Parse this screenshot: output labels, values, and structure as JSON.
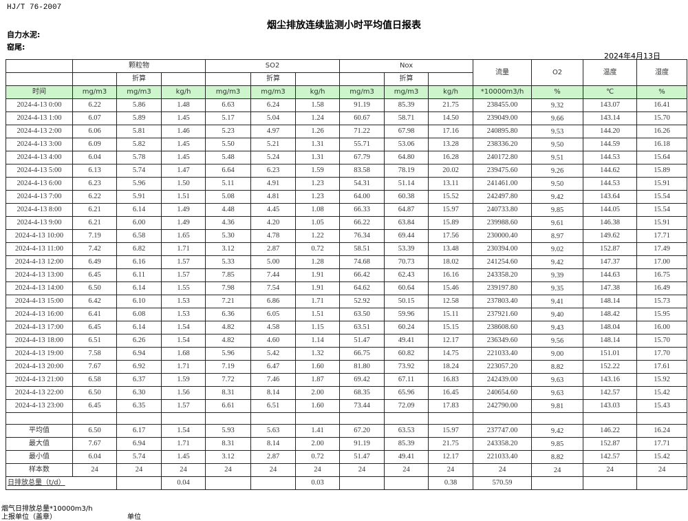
{
  "header": {
    "standard": "HJ/T  76-2007",
    "title": "烟尘排放连续监测小时平均值日报表",
    "company": "自力水泥:",
    "kiln": "窑尾:",
    "date": "2024年4月13日"
  },
  "table": {
    "groups": {
      "pm": "颗粒物",
      "so2": "SO2",
      "nox": "Nox",
      "flow": "流量",
      "o2": "O2",
      "temp": "温度",
      "humid": "湿度"
    },
    "converted_label": "折算",
    "units": [
      "时间",
      "mg/m3",
      "mg/m3",
      "kg/h",
      "mg/m3",
      "mg/m3",
      "kg/h",
      "mg/m3",
      "mg/m3",
      "kg/h",
      "*10000m3/h",
      "%",
      "℃",
      "%"
    ],
    "rows": [
      [
        "2024-4-13 0:00",
        "6.22",
        "5.86",
        "1.48",
        "6.63",
        "6.24",
        "1.58",
        "91.19",
        "85.39",
        "21.75",
        "238455.00",
        "9.32",
        "143.07",
        "16.41"
      ],
      [
        "2024-4-13 1:00",
        "6.07",
        "5.89",
        "1.45",
        "5.17",
        "5.04",
        "1.24",
        "60.67",
        "58.71",
        "14.50",
        "239049.00",
        "9.66",
        "143.14",
        "15.70"
      ],
      [
        "2024-4-13 2:00",
        "6.06",
        "5.81",
        "1.46",
        "5.23",
        "4.97",
        "1.26",
        "71.22",
        "67.98",
        "17.16",
        "240895.80",
        "9.53",
        "144.20",
        "16.26"
      ],
      [
        "2024-4-13 3:00",
        "6.09",
        "5.82",
        "1.45",
        "5.50",
        "5.21",
        "1.31",
        "55.71",
        "53.06",
        "13.28",
        "238336.20",
        "9.50",
        "144.59",
        "16.18"
      ],
      [
        "2024-4-13 4:00",
        "6.04",
        "5.78",
        "1.45",
        "5.48",
        "5.24",
        "1.31",
        "67.79",
        "64.80",
        "16.28",
        "240172.80",
        "9.51",
        "144.53",
        "15.64"
      ],
      [
        "2024-4-13 5:00",
        "6.13",
        "5.74",
        "1.47",
        "6.64",
        "6.23",
        "1.59",
        "83.58",
        "78.19",
        "20.02",
        "239475.60",
        "9.26",
        "144.62",
        "15.89"
      ],
      [
        "2024-4-13 6:00",
        "6.23",
        "5.96",
        "1.50",
        "5.11",
        "4.91",
        "1.23",
        "54.31",
        "51.14",
        "13.11",
        "241461.00",
        "9.50",
        "144.53",
        "15.91"
      ],
      [
        "2024-4-13 7:00",
        "6.22",
        "5.91",
        "1.51",
        "5.08",
        "4.81",
        "1.23",
        "64.00",
        "60.38",
        "15.52",
        "242497.80",
        "9.42",
        "143.64",
        "15.54"
      ],
      [
        "2024-4-13 8:00",
        "6.21",
        "6.14",
        "1.49",
        "4.48",
        "4.45",
        "1.08",
        "66.33",
        "64.87",
        "15.97",
        "240733.80",
        "9.85",
        "144.05",
        "15.54"
      ],
      [
        "2024-4-13 9:00",
        "6.21",
        "6.00",
        "1.49",
        "4.36",
        "4.20",
        "1.05",
        "66.22",
        "63.84",
        "15.89",
        "239988.60",
        "9.61",
        "146.38",
        "15.91"
      ],
      [
        "2024-4-13 10:00",
        "7.19",
        "6.58",
        "1.65",
        "5.30",
        "4.78",
        "1.22",
        "76.34",
        "69.44",
        "17.56",
        "230000.40",
        "8.97",
        "149.62",
        "17.71"
      ],
      [
        "2024-4-13 11:00",
        "7.42",
        "6.82",
        "1.71",
        "3.12",
        "2.87",
        "0.72",
        "58.51",
        "53.39",
        "13.48",
        "230394.00",
        "9.02",
        "152.87",
        "17.49"
      ],
      [
        "2024-4-13 12:00",
        "6.49",
        "6.16",
        "1.57",
        "5.33",
        "5.00",
        "1.28",
        "74.68",
        "70.73",
        "18.02",
        "241254.60",
        "9.42",
        "147.37",
        "17.00"
      ],
      [
        "2024-4-13 13:00",
        "6.45",
        "6.11",
        "1.57",
        "7.85",
        "7.44",
        "1.91",
        "66.42",
        "62.43",
        "16.16",
        "243358.20",
        "9.39",
        "144.63",
        "16.75"
      ],
      [
        "2024-4-13 14:00",
        "6.50",
        "6.14",
        "1.55",
        "7.98",
        "7.54",
        "1.91",
        "64.62",
        "60.64",
        "15.46",
        "239197.80",
        "9.35",
        "147.38",
        "16.49"
      ],
      [
        "2024-4-13 15:00",
        "6.42",
        "6.10",
        "1.53",
        "7.21",
        "6.86",
        "1.71",
        "52.92",
        "50.15",
        "12.58",
        "237803.40",
        "9.41",
        "148.14",
        "15.73"
      ],
      [
        "2024-4-13 16:00",
        "6.41",
        "6.08",
        "1.53",
        "6.36",
        "6.05",
        "1.51",
        "63.50",
        "59.96",
        "15.11",
        "237921.60",
        "9.40",
        "148.42",
        "15.95"
      ],
      [
        "2024-4-13 17:00",
        "6.45",
        "6.14",
        "1.54",
        "4.82",
        "4.58",
        "1.15",
        "63.51",
        "60.24",
        "15.15",
        "238608.60",
        "9.43",
        "148.04",
        "16.00"
      ],
      [
        "2024-4-13 18:00",
        "6.51",
        "6.26",
        "1.54",
        "4.82",
        "4.60",
        "1.14",
        "51.47",
        "49.41",
        "12.17",
        "236349.60",
        "9.56",
        "148.14",
        "15.70"
      ],
      [
        "2024-4-13 19:00",
        "7.58",
        "6.94",
        "1.68",
        "5.96",
        "5.42",
        "1.32",
        "66.75",
        "60.82",
        "14.75",
        "221033.40",
        "9.00",
        "151.01",
        "17.70"
      ],
      [
        "2024-4-13 20:00",
        "7.67",
        "6.92",
        "1.71",
        "7.19",
        "6.47",
        "1.60",
        "81.80",
        "73.92",
        "18.24",
        "223057.20",
        "8.82",
        "152.22",
        "17.61"
      ],
      [
        "2024-4-13 21:00",
        "6.58",
        "6.37",
        "1.59",
        "7.72",
        "7.46",
        "1.87",
        "69.42",
        "67.11",
        "16.83",
        "242439.00",
        "9.63",
        "143.16",
        "15.92"
      ],
      [
        "2024-4-13 22:00",
        "6.50",
        "6.30",
        "1.56",
        "8.31",
        "8.14",
        "2.00",
        "68.35",
        "65.96",
        "16.45",
        "240654.60",
        "9.63",
        "142.57",
        "15.42"
      ],
      [
        "2024-4-13 23:00",
        "6.45",
        "6.35",
        "1.57",
        "6.61",
        "6.51",
        "1.60",
        "73.44",
        "72.09",
        "17.83",
        "242790.00",
        "9.81",
        "143.03",
        "15.43"
      ]
    ],
    "summary": [
      [
        "平均值",
        "6.50",
        "6.17",
        "1.54",
        "5.93",
        "5.63",
        "1.41",
        "67.20",
        "63.53",
        "15.97",
        "237747.00",
        "9.42",
        "146.22",
        "16.24"
      ],
      [
        "最大值",
        "7.67",
        "6.94",
        "1.71",
        "8.31",
        "8.14",
        "2.00",
        "91.19",
        "85.39",
        "21.75",
        "243358.20",
        "9.85",
        "152.87",
        "17.71"
      ],
      [
        "最小值",
        "6.04",
        "5.74",
        "1.45",
        "3.12",
        "2.87",
        "0.72",
        "51.47",
        "49.41",
        "12.17",
        "221033.40",
        "8.82",
        "142.57",
        "15.42"
      ],
      [
        "样本数",
        "24",
        "24",
        "24",
        "24",
        "24",
        "24",
        "24",
        "24",
        "24",
        "24",
        "24",
        "24",
        "24"
      ]
    ],
    "daily_total": {
      "label": "日排放总量（t/d）",
      "values": [
        "",
        "0.04",
        "",
        "",
        "0.03",
        "",
        "",
        "0.38",
        "570.59",
        "",
        "",
        ""
      ]
    }
  },
  "footer": {
    "flue_gas_total": "烟气日排放总量*10000m3/h",
    "reporting_unit": "上报单位（盖章）",
    "unit": "单位"
  },
  "colors": {
    "units_row_bg": "#ccf5cc",
    "border": "#222222"
  }
}
